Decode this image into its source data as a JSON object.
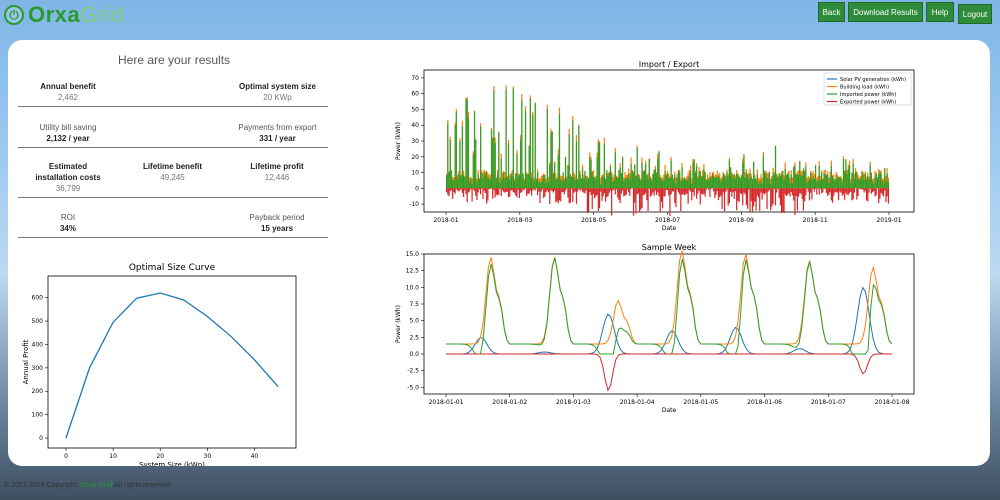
{
  "brand": {
    "name_dark": "Orxa",
    "name_light": "Grid",
    "icon": "power-icon"
  },
  "nav": {
    "back": "Back",
    "download": "Download Results",
    "help": "Help",
    "logout": "Logout"
  },
  "results": {
    "title": "Here are your results",
    "annual_benefit_label": "Annual benefit",
    "annual_benefit_value": "2,462",
    "optimal_size_label": "Optimal system size",
    "optimal_size_value": "20 KWp",
    "bill_saving_label": "Utility bill saving",
    "bill_saving_value": "2,132 / year",
    "export_payment_label": "Payments from export",
    "export_payment_value": "331 / year",
    "install_cost_label_1": "Estimated",
    "install_cost_label_2": "installation costs",
    "install_cost_value": "36,799",
    "lifetime_benefit_label": "Lifetime benefit",
    "lifetime_benefit_value": "49,245",
    "lifetime_profit_label": "Lifetime profit",
    "lifetime_profit_value": "12,446",
    "roi_label": "ROI",
    "roi_value": "34%",
    "payback_label": "Payback period",
    "payback_value": "15 years"
  },
  "footer": {
    "prefix": "© 2017-2020 Copyright.",
    "brand": "Orxa Grid",
    "suffix": "All rights reserved."
  },
  "colors": {
    "solar": "#1f77b4",
    "building": "#ff7f0e",
    "imported": "#2ca02c",
    "exported": "#d62728",
    "brand": "#2e8b3a"
  },
  "chart_data": [
    {
      "type": "line",
      "title": "Optimal Size Curve",
      "xlabel": "System Size (kWp)",
      "ylabel": "Annual Profit",
      "xlim": [
        0,
        45
      ],
      "ylim": [
        0,
        650
      ],
      "xticks": [
        "0",
        "10",
        "20",
        "30",
        "40"
      ],
      "yticks": [
        "0",
        "100",
        "200",
        "300",
        "400",
        "500",
        "600"
      ],
      "x": [
        0,
        5,
        10,
        15,
        20,
        25,
        30,
        35,
        40,
        45
      ],
      "series": [
        {
          "values": [
            0,
            300,
            495,
            598,
            620,
            590,
            520,
            435,
            335,
            220
          ]
        }
      ]
    },
    {
      "type": "bar",
      "title": "Import / Export",
      "xlabel": "Date",
      "ylabel": "Power (kWh)",
      "ylim": [
        -15,
        75
      ],
      "xticks": [
        "2018-01",
        "2018-03",
        "2018-05",
        "2018-07",
        "2018-09",
        "2018-11",
        "2019-01"
      ],
      "yticks": [
        "-10",
        "0",
        "10",
        "20",
        "30",
        "40",
        "50",
        "60",
        "70"
      ],
      "legend": "top-right",
      "series": [
        {
          "name": "Solar PV generation (kWh)",
          "approx_max": 0
        },
        {
          "name": "Building load (kWh)",
          "approx_max": 68
        },
        {
          "name": "Imported power (kWh)",
          "approx_max": 67
        },
        {
          "name": "Exported power (kWh)",
          "approx_min": -20
        }
      ]
    },
    {
      "type": "line",
      "title": "Sample Week",
      "xlabel": "Date",
      "ylabel": "Power (kWh)",
      "ylim": [
        -6,
        15
      ],
      "xticks": [
        "2018-01-01",
        "2018-01-02",
        "2018-01-03",
        "2018-01-04",
        "2018-01-05",
        "2018-01-06",
        "2018-01-07",
        "2018-01-08"
      ],
      "yticks": [
        "-5.0",
        "-2.5",
        "0.0",
        "2.5",
        "5.0",
        "7.5",
        "10.0",
        "12.5",
        "15.0"
      ],
      "legend": "none",
      "series": [
        {
          "name": "Solar PV generation (kWh)",
          "peaks": [
            2.5,
            0.3,
            6.0,
            3.5,
            4.0,
            0.8,
            10.0
          ]
        },
        {
          "name": "Building load (kWh)",
          "peaks": [
            13,
            13,
            6.5,
            14,
            13.5,
            12.5,
            11.5
          ]
        },
        {
          "name": "Imported power (kWh)",
          "peaks": [
            12.5,
            13,
            3.5,
            13.5,
            13.5,
            12.5,
            11
          ]
        },
        {
          "name": "Exported power (kWh)",
          "troughs": [
            0,
            0,
            -5.5,
            0,
            0,
            0,
            -3
          ]
        }
      ]
    }
  ]
}
